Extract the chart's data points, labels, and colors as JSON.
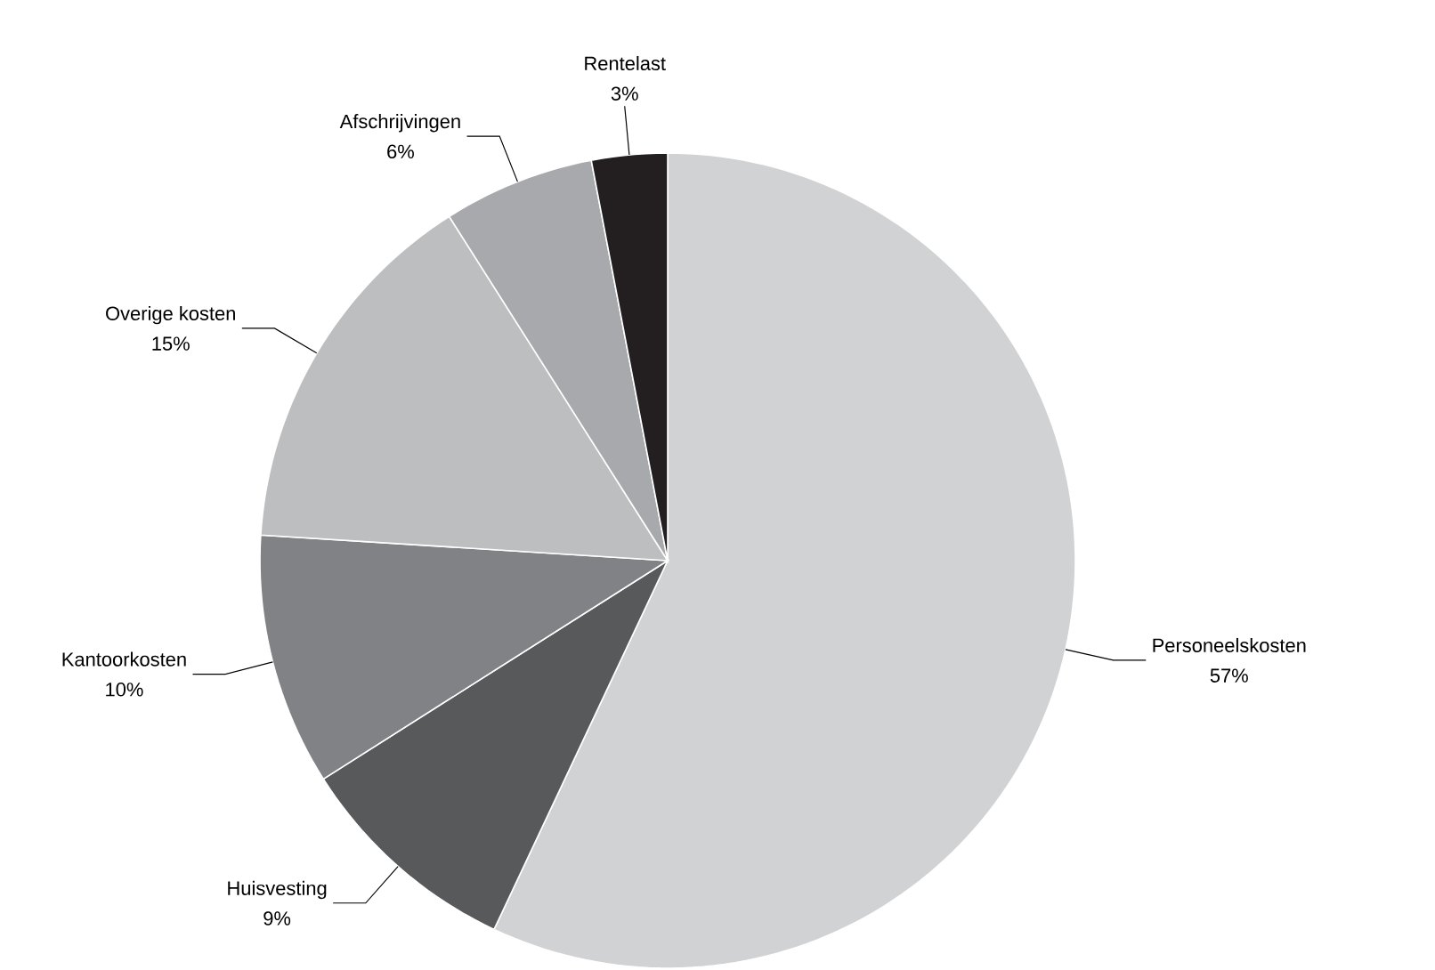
{
  "chart_data": {
    "type": "pie",
    "categories": [
      "Personeelskosten",
      "Huisvesting",
      "Kantoorkosten",
      "Overige kosten",
      "Afschrijvingen",
      "Rentelast"
    ],
    "values": [
      57,
      9,
      10,
      15,
      6,
      3
    ],
    "value_labels": [
      "57%",
      "9%",
      "10%",
      "15%",
      "6%",
      "3%"
    ],
    "colors": [
      "#d1d2d4",
      "#58595b",
      "#808285",
      "#bcbec0",
      "#a7a9ac",
      "#231f20"
    ]
  }
}
